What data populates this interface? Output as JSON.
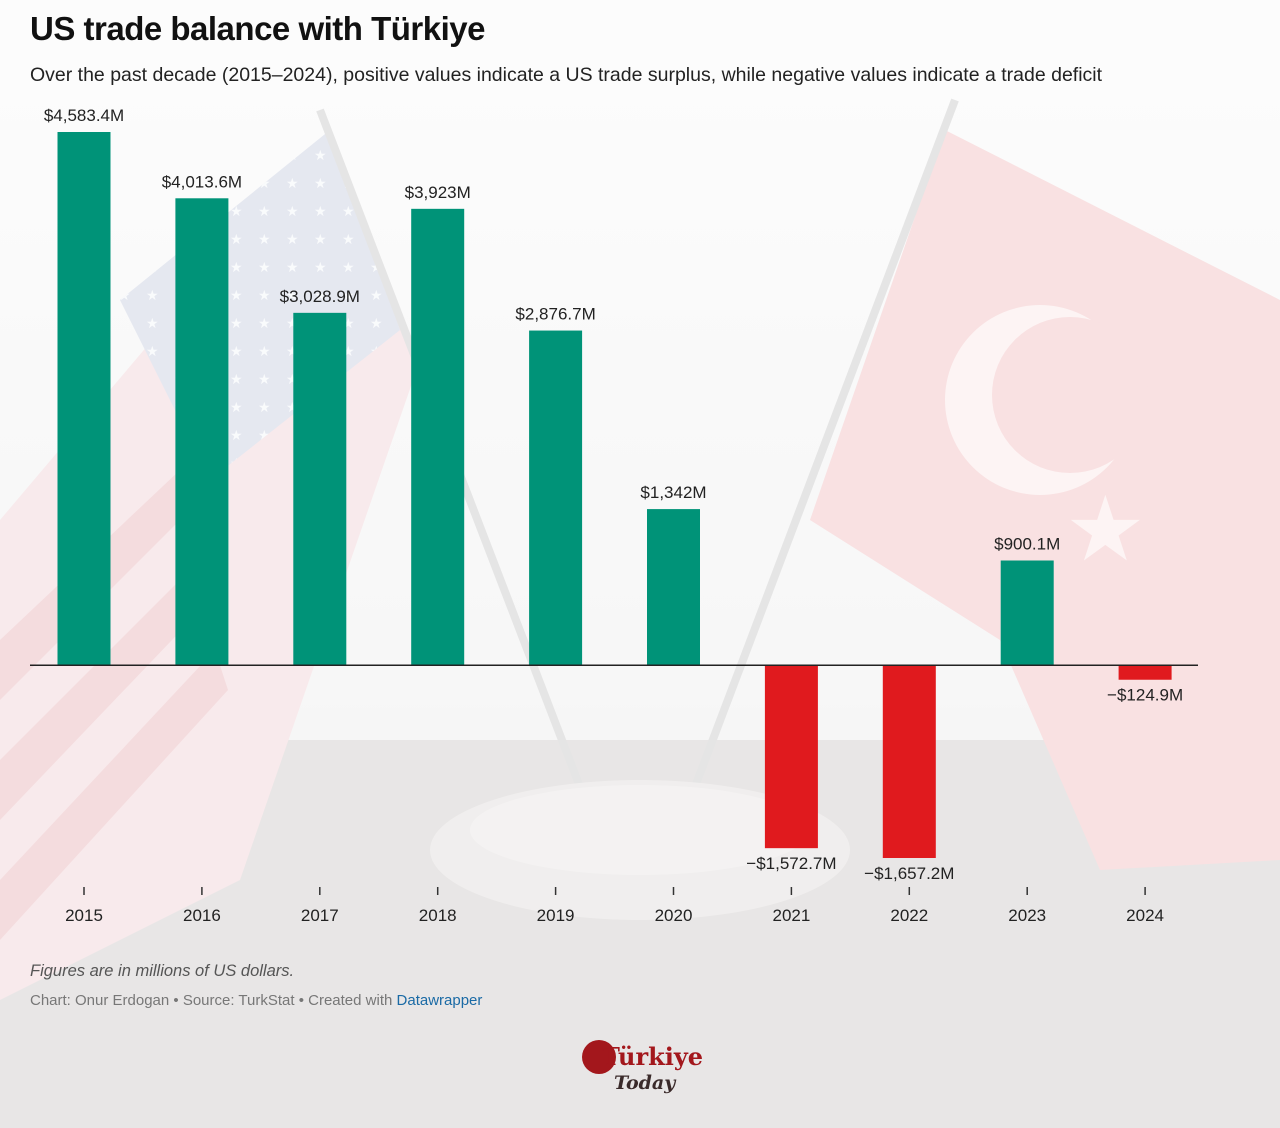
{
  "header": {
    "title": "US trade balance with Türkiye",
    "subtitle": "Over the past decade (2015–2024), positive values indicate a US trade surplus, while negative values indicate a trade deficit"
  },
  "footer": {
    "notes": "Figures are in millions of US dollars.",
    "credits_prefix": "Chart: Onur Erdogan • Source: TurkStat • Created with ",
    "credits_link": "Datawrapper"
  },
  "logo": {
    "line1": "Türkiye",
    "line2": "Today"
  },
  "colors": {
    "positive": "#009378",
    "negative": "#e01a1e",
    "axis": "#222222"
  },
  "chart_data": {
    "type": "bar",
    "title": "US trade balance with Türkiye",
    "categories": [
      "2015",
      "2016",
      "2017",
      "2018",
      "2019",
      "2020",
      "2021",
      "2022",
      "2023",
      "2024"
    ],
    "values": [
      4583.4,
      4013.6,
      3028.9,
      3923,
      2876.7,
      1342,
      -1572.7,
      -1657.2,
      900.1,
      -124.9
    ],
    "labels": [
      "$4,583.4M",
      "$4,013.6M",
      "$3,028.9M",
      "$3,923M",
      "$2,876.7M",
      "$1,342M",
      "−$1,572.7M",
      "−$1,657.2M",
      "$900.1M",
      "−$124.9M"
    ],
    "xlabel": "",
    "ylabel": "",
    "ylim": [
      -1657.2,
      4583.4
    ],
    "grid": false,
    "legend": "none"
  }
}
